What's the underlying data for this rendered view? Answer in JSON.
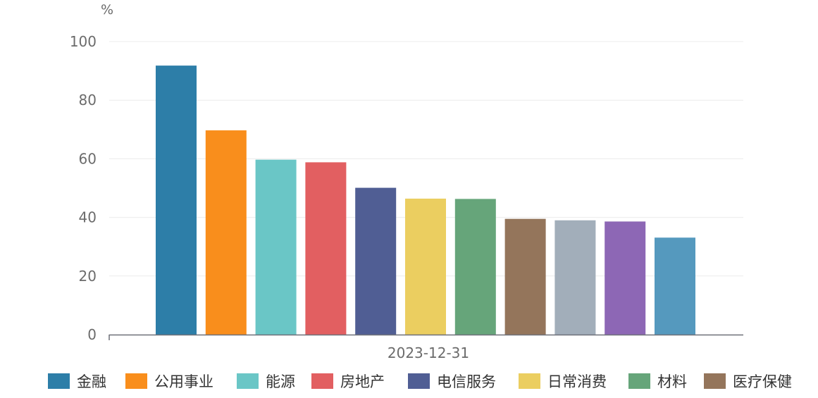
{
  "chart_data": {
    "type": "bar",
    "categories": [
      "2023-12-31"
    ],
    "ylabel": "%",
    "ylim": [
      0,
      100
    ],
    "yticks": [
      0,
      20,
      40,
      60,
      80,
      100
    ],
    "grid": true,
    "legend_position": "bottom",
    "series": [
      {
        "name": "金融",
        "values": [
          91.8
        ],
        "color": "#2d7ea8"
      },
      {
        "name": "公用事业",
        "values": [
          69.7
        ],
        "color": "#f98e1c"
      },
      {
        "name": "能源",
        "values": [
          59.7
        ],
        "color": "#6ac6c6"
      },
      {
        "name": "房地产",
        "values": [
          58.8
        ],
        "color": "#e25f61"
      },
      {
        "name": "电信服务",
        "values": [
          50.1
        ],
        "color": "#505e94"
      },
      {
        "name": "日常消费",
        "values": [
          46.4
        ],
        "color": "#ebce60"
      },
      {
        "name": "材料",
        "values": [
          46.3
        ],
        "color": "#66a57a"
      },
      {
        "name": "医疗保健",
        "values": [
          39.5
        ],
        "color": "#94755b"
      },
      {
        "name": null,
        "values": [
          39.0
        ],
        "color": "#a2aeba"
      },
      {
        "name": null,
        "values": [
          38.6
        ],
        "color": "#8d67b5"
      },
      {
        "name": null,
        "values": [
          33.1
        ],
        "color": "#5599be"
      }
    ]
  }
}
